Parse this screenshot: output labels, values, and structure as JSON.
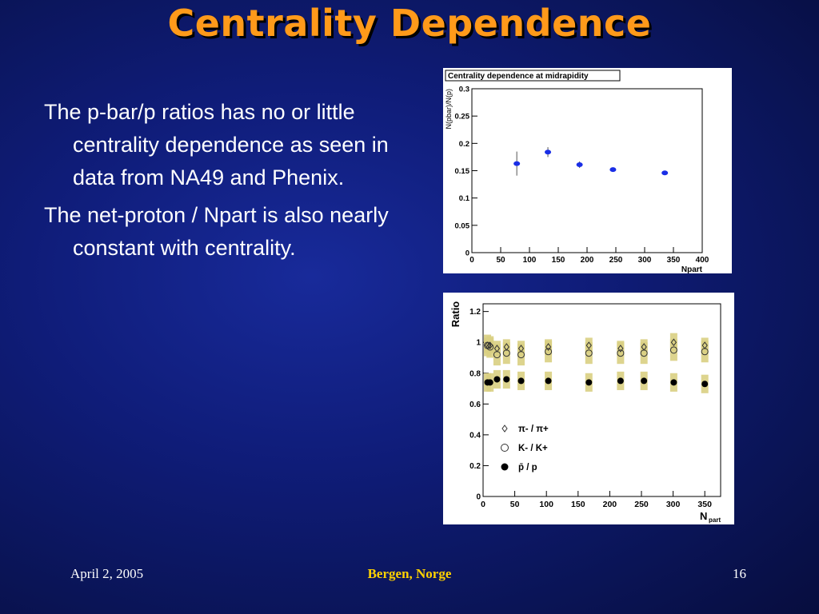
{
  "slide": {
    "title": "Centrality Dependence",
    "bullets": [
      "The p-bar/p ratios has no or little centrality dependence as seen in data from NA49 and Phenix.",
      "The net-proton / Npart is also nearly constant with centrality."
    ],
    "footer": {
      "date": "April 2, 2005",
      "venue": "Bergen, Norge",
      "page": "16"
    },
    "colors": {
      "title": "#ff9a1a",
      "footer_venue": "#ffd200",
      "text": "#ffffff"
    }
  },
  "chart_data": [
    {
      "type": "scatter",
      "title": "Centrality dependence at midrapidity",
      "xlabel": "Npart",
      "ylabel": "N(pbar)/N(p)",
      "xlim": [
        0,
        400
      ],
      "ylim": [
        0,
        0.3
      ],
      "xticks": [
        0,
        50,
        100,
        150,
        200,
        250,
        300,
        350,
        400
      ],
      "yticks": [
        0,
        0.05,
        0.1,
        0.15,
        0.2,
        0.25,
        0.3
      ],
      "series": [
        {
          "color": "#1a2ee6",
          "marker": "filled-circle",
          "points": [
            {
              "x": 78,
              "y": 0.163,
              "yerr": 0.022
            },
            {
              "x": 132,
              "y": 0.184,
              "yerr": 0.009
            },
            {
              "x": 187,
              "y": 0.161,
              "yerr": 0.006
            },
            {
              "x": 245,
              "y": 0.152,
              "yerr": 0.003
            },
            {
              "x": 335,
              "y": 0.146,
              "yerr": 0.003
            }
          ]
        }
      ]
    },
    {
      "type": "scatter",
      "xlabel": "N",
      "xlabel_sub": "part",
      "ylabel": "Ratio",
      "xlim": [
        0,
        375
      ],
      "ylim": [
        0,
        1.25
      ],
      "xticks": [
        0,
        50,
        100,
        150,
        200,
        250,
        300,
        350
      ],
      "yticks": [
        0,
        0.2,
        0.4,
        0.6,
        0.8,
        1,
        1.2
      ],
      "band_color": "#d9cf82",
      "legend": [
        {
          "marker": "diamond",
          "label_html": "&pi;<sup>-</sup> / &pi;<sup>+</sup>"
        },
        {
          "marker": "open-circle",
          "label_html": "<tspan font-weight='bold'>K</tspan><sup>-</sup> <tspan font-weight='bold'>/ K</tspan><sup>+</sup>"
        },
        {
          "marker": "filled-circle",
          "label_html": "<tspan font-weight='bold' text-decoration='overline'>p</tspan> / p"
        }
      ],
      "legend_labels": [
        "π- / π+",
        "K- / K+",
        "p̄ / p"
      ],
      "legend_position": "lower-left",
      "series": [
        {
          "name": "π- / π+",
          "marker": "diamond",
          "x": [
            7,
            11,
            22,
            37,
            60,
            103,
            167,
            217,
            254,
            301,
            350
          ],
          "y": [
            0.98,
            0.98,
            0.96,
            0.97,
            0.96,
            0.97,
            0.98,
            0.96,
            0.97,
            1.0,
            0.98
          ],
          "band": [
            0.05,
            0.05,
            0.05,
            0.05,
            0.05,
            0.05,
            0.05,
            0.05,
            0.05,
            0.06,
            0.05
          ]
        },
        {
          "name": "K- / K+",
          "marker": "open-circle",
          "x": [
            7,
            11,
            22,
            37,
            60,
            103,
            167,
            217,
            254,
            301,
            350
          ],
          "y": [
            0.98,
            0.97,
            0.92,
            0.93,
            0.92,
            0.94,
            0.93,
            0.93,
            0.93,
            0.95,
            0.94
          ],
          "band": [
            0.07,
            0.07,
            0.07,
            0.07,
            0.07,
            0.07,
            0.07,
            0.07,
            0.07,
            0.07,
            0.07
          ]
        },
        {
          "name": "p̄ / p",
          "marker": "filled-circle",
          "x": [
            7,
            11,
            22,
            37,
            60,
            103,
            167,
            217,
            254,
            301,
            350
          ],
          "y": [
            0.74,
            0.74,
            0.76,
            0.76,
            0.75,
            0.75,
            0.74,
            0.75,
            0.75,
            0.74,
            0.73
          ],
          "band": [
            0.06,
            0.06,
            0.06,
            0.06,
            0.06,
            0.06,
            0.06,
            0.06,
            0.06,
            0.06,
            0.06
          ]
        }
      ]
    }
  ]
}
